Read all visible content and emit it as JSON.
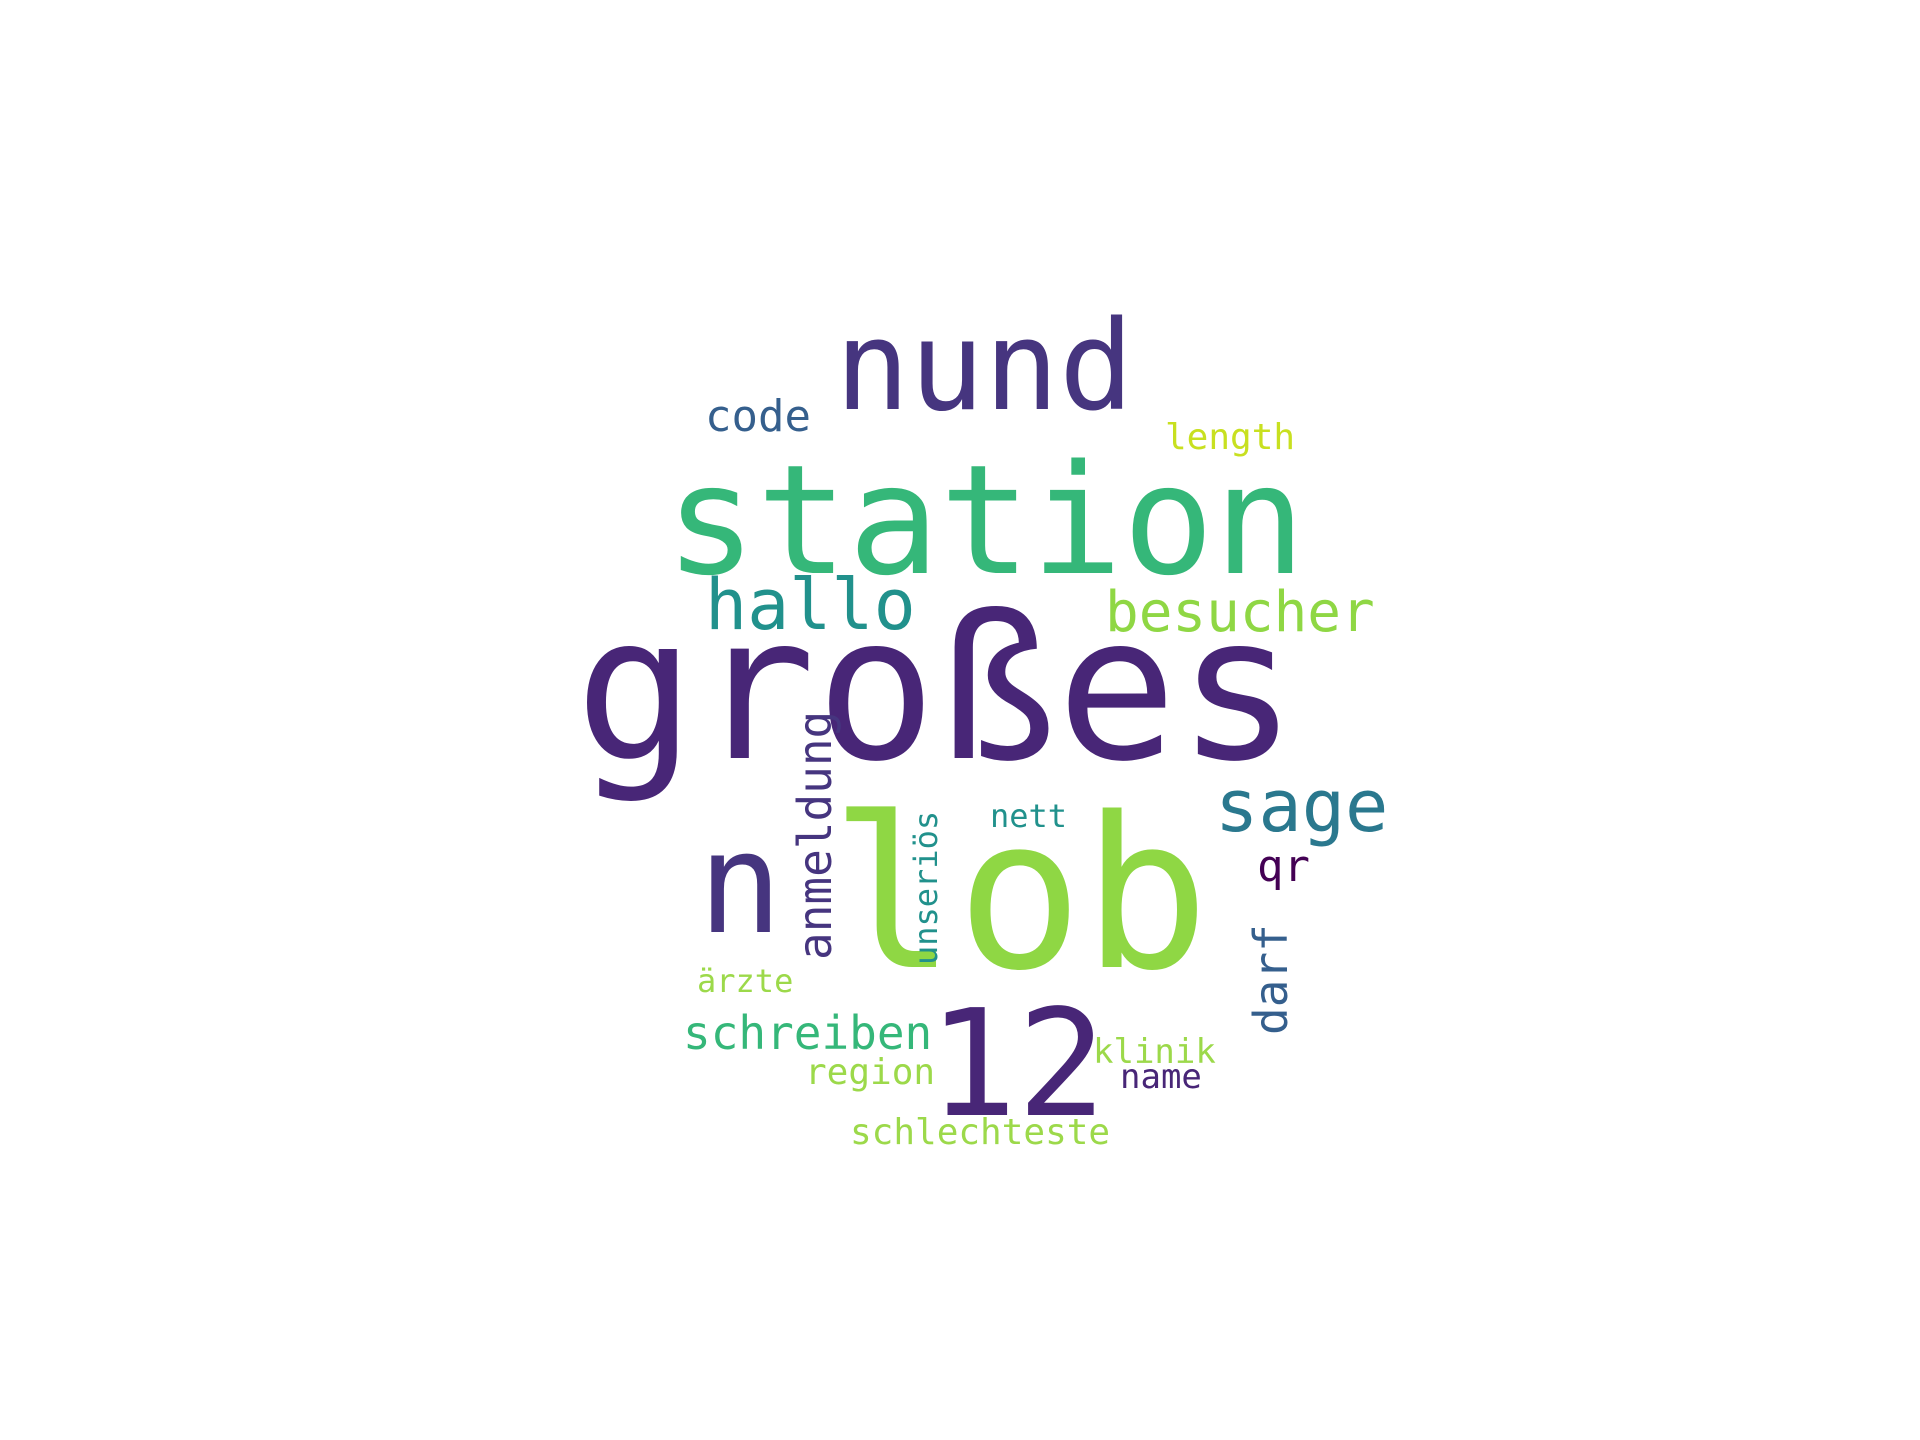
{
  "words": {
    "grosses": "großes",
    "lob": "lob",
    "station": "station",
    "nund": "nund",
    "n": "n",
    "twelve": "12",
    "hallo": "hallo",
    "besucher": "besucher",
    "sage": "sage",
    "code": "code",
    "length": "length",
    "schreiben": "schreiben",
    "arzte": "ärzte",
    "region": "region",
    "schlechteste": "schlechteste",
    "klinik": "klinik",
    "name": "name",
    "nett": "nett",
    "qr": "qr",
    "anmeldung": "anmeldung",
    "unserios": "unseriös",
    "darf": "darf"
  },
  "colors": {
    "background": "#ffffff",
    "dark_purple": "#482677",
    "indigo": "#46357f",
    "slate_blue": "#355f8d",
    "teal": "#2a788e",
    "cyan": "#21918c",
    "green": "#35b779",
    "lime": "#8fd744",
    "yellow_green": "#c8e020",
    "plum": "#440154"
  }
}
